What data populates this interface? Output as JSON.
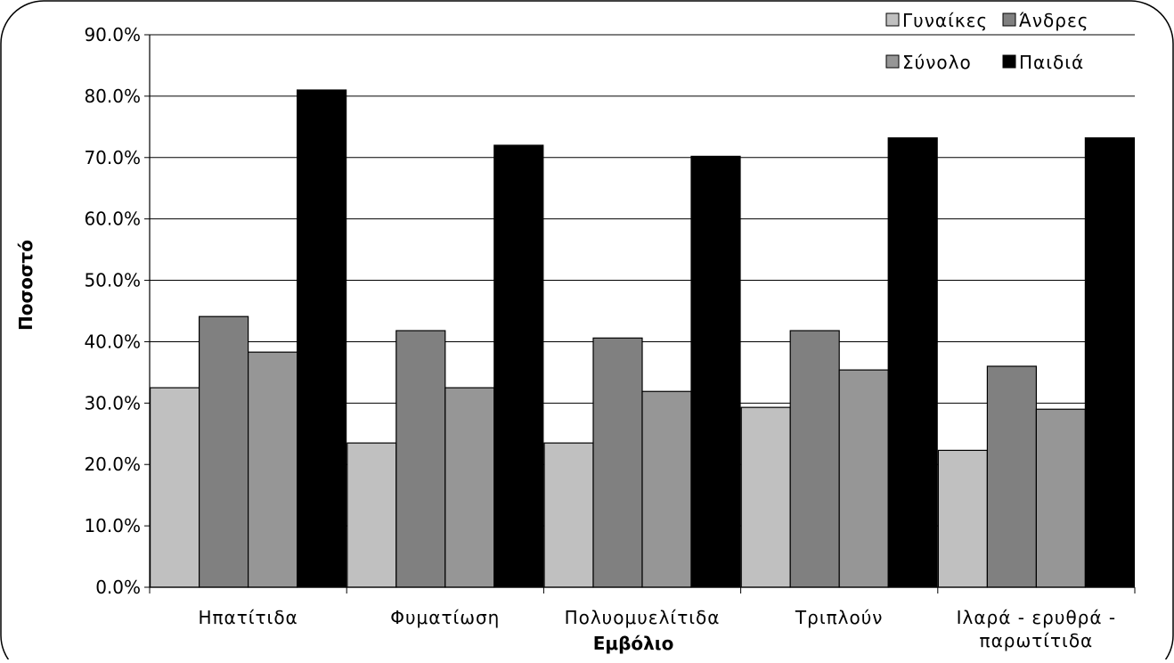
{
  "chart_data": {
    "type": "bar",
    "title": "",
    "xlabel": "Εμβόλιο",
    "ylabel": "Ποσοστό",
    "ylim": [
      0,
      90
    ],
    "y_ticks": [
      "0.0%",
      "10.0%",
      "20.0%",
      "30.0%",
      "40.0%",
      "50.0%",
      "60.0%",
      "70.0%",
      "80.0%",
      "90.0%"
    ],
    "y_tick_values": [
      0,
      10,
      20,
      30,
      40,
      50,
      60,
      70,
      80,
      90
    ],
    "grid": "horizontal",
    "legend_position": "top-right",
    "categories": [
      [
        "Ηπατίτιδα"
      ],
      [
        "Φυματίωση"
      ],
      [
        "Πολυομυελίτιδα"
      ],
      [
        "Τριπλούν"
      ],
      [
        "Ιλαρά - ερυθρά -",
        "παρωτίτιδα"
      ]
    ],
    "series": [
      {
        "name": "Γυναίκες",
        "color": "#c0c0c0",
        "values": [
          32.5,
          23.5,
          23.5,
          29.3,
          22.3
        ]
      },
      {
        "name": "Άνδρες",
        "color": "#808080",
        "values": [
          44.1,
          41.8,
          40.6,
          41.8,
          36.0
        ]
      },
      {
        "name": "Σύνολο",
        "color": "#969696",
        "values": [
          38.3,
          32.5,
          31.9,
          35.4,
          29.0
        ]
      },
      {
        "name": "Παιδιά",
        "color": "#000000",
        "values": [
          81.0,
          72.0,
          70.2,
          73.2,
          73.2
        ]
      }
    ]
  }
}
